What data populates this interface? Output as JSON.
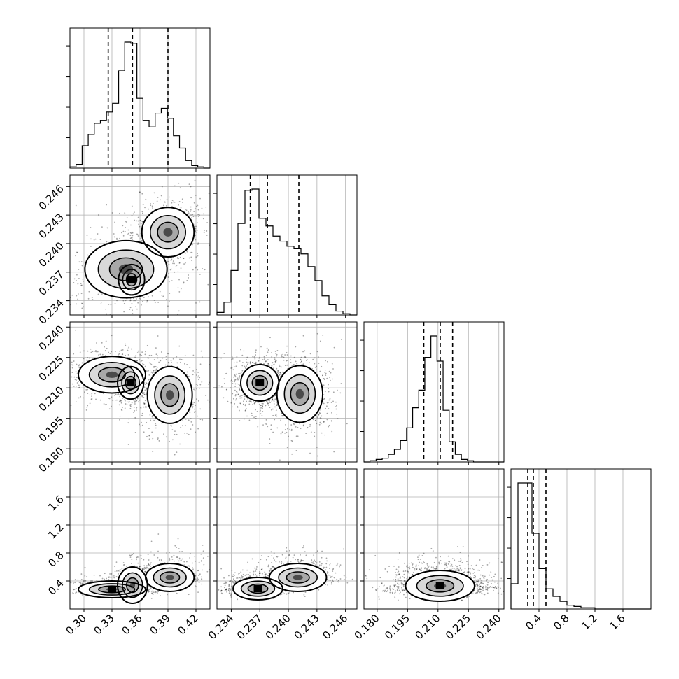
{
  "chart_data": {
    "type": "corner",
    "title": "",
    "parameters": [
      {
        "ticks": [
          0.3,
          0.33,
          0.36,
          0.39,
          0.42
        ],
        "tick_labels": [
          "0.30",
          "0.33",
          "0.36",
          "0.39",
          "0.42"
        ],
        "range": [
          0.285,
          0.435
        ],
        "quantiles": [
          0.326,
          0.352,
          0.39
        ],
        "hist": [
          1,
          3,
          18,
          27,
          36,
          38,
          45,
          52,
          78,
          101,
          100,
          56,
          38,
          33,
          44,
          48,
          40,
          26,
          16,
          6,
          2,
          1,
          0
        ]
      },
      {
        "ticks": [
          0.234,
          0.237,
          0.24,
          0.243,
          0.246
        ],
        "tick_labels": [
          "0.234",
          "0.237",
          "0.240",
          "0.243",
          "0.246"
        ],
        "range": [
          0.2325,
          0.2472
        ],
        "quantiles": [
          0.236,
          0.2378,
          0.2411
        ],
        "hist": [
          2,
          10,
          35,
          72,
          98,
          99,
          76,
          70,
          62,
          58,
          54,
          52,
          48,
          38,
          27,
          15,
          8,
          3,
          1,
          0
        ]
      },
      {
        "ticks": [
          0.18,
          0.195,
          0.21,
          0.225,
          0.24
        ],
        "tick_labels": [
          "0.180",
          "0.195",
          "0.210",
          "0.225",
          "0.240"
        ],
        "range": [
          0.1735,
          0.2425
        ],
        "quantiles": [
          0.203,
          0.2111,
          0.2172
        ],
        "hist": [
          0,
          1,
          2,
          3,
          6,
          10,
          17,
          27,
          43,
          57,
          83,
          100,
          80,
          41,
          16,
          6,
          2,
          1,
          0,
          0,
          0,
          0,
          0
        ]
      },
      {
        "ticks": [
          0.4,
          0.8,
          1.2,
          1.6
        ],
        "tick_labels": [
          "0.4",
          "0.8",
          "1.2",
          "1.6"
        ],
        "range": [
          0.0,
          2.0
        ],
        "quantiles": [
          0.24,
          0.32,
          0.5
        ],
        "hist": [
          20,
          100,
          100,
          60,
          32,
          16,
          10,
          6,
          3,
          2,
          1,
          1,
          0,
          0,
          0,
          0,
          0,
          0,
          0,
          0
        ]
      }
    ],
    "pairs": [
      {
        "row": 1,
        "col": 0,
        "modes": [
          {
            "cx": 0.345,
            "cy": 0.2373,
            "sx": 0.022,
            "sy": 0.0015,
            "w": 0.35
          },
          {
            "cx": 0.351,
            "cy": 0.2362,
            "sx": 0.007,
            "sy": 0.0008,
            "w": 0.28
          },
          {
            "cx": 0.39,
            "cy": 0.2412,
            "sx": 0.014,
            "sy": 0.0013,
            "w": 0.37
          }
        ]
      },
      {
        "row": 2,
        "col": 0,
        "modes": [
          {
            "cx": 0.33,
            "cy": 0.2165,
            "sx": 0.018,
            "sy": 0.0045,
            "w": 0.4
          },
          {
            "cx": 0.35,
            "cy": 0.2125,
            "sx": 0.007,
            "sy": 0.004,
            "w": 0.25
          },
          {
            "cx": 0.392,
            "cy": 0.2065,
            "sx": 0.012,
            "sy": 0.007,
            "w": 0.35
          }
        ]
      },
      {
        "row": 2,
        "col": 1,
        "modes": [
          {
            "cx": 0.237,
            "cy": 0.2125,
            "sx": 0.001,
            "sy": 0.0045,
            "w": 0.55
          },
          {
            "cx": 0.2412,
            "cy": 0.207,
            "sx": 0.0012,
            "sy": 0.007,
            "w": 0.45
          }
        ]
      },
      {
        "row": 3,
        "col": 0,
        "modes": [
          {
            "cx": 0.33,
            "cy": 0.28,
            "sx": 0.018,
            "sy": 0.06,
            "w": 0.4
          },
          {
            "cx": 0.352,
            "cy": 0.34,
            "sx": 0.008,
            "sy": 0.13,
            "w": 0.25
          },
          {
            "cx": 0.392,
            "cy": 0.45,
            "sx": 0.013,
            "sy": 0.1,
            "w": 0.35
          }
        ]
      },
      {
        "row": 3,
        "col": 1,
        "modes": [
          {
            "cx": 0.2368,
            "cy": 0.29,
            "sx": 0.0013,
            "sy": 0.08,
            "w": 0.6
          },
          {
            "cx": 0.241,
            "cy": 0.45,
            "sx": 0.0015,
            "sy": 0.1,
            "w": 0.4
          }
        ]
      },
      {
        "row": 3,
        "col": 2,
        "modes": [
          {
            "cx": 0.211,
            "cy": 0.33,
            "sx": 0.0085,
            "sy": 0.11,
            "w": 1.0
          }
        ]
      }
    ]
  }
}
